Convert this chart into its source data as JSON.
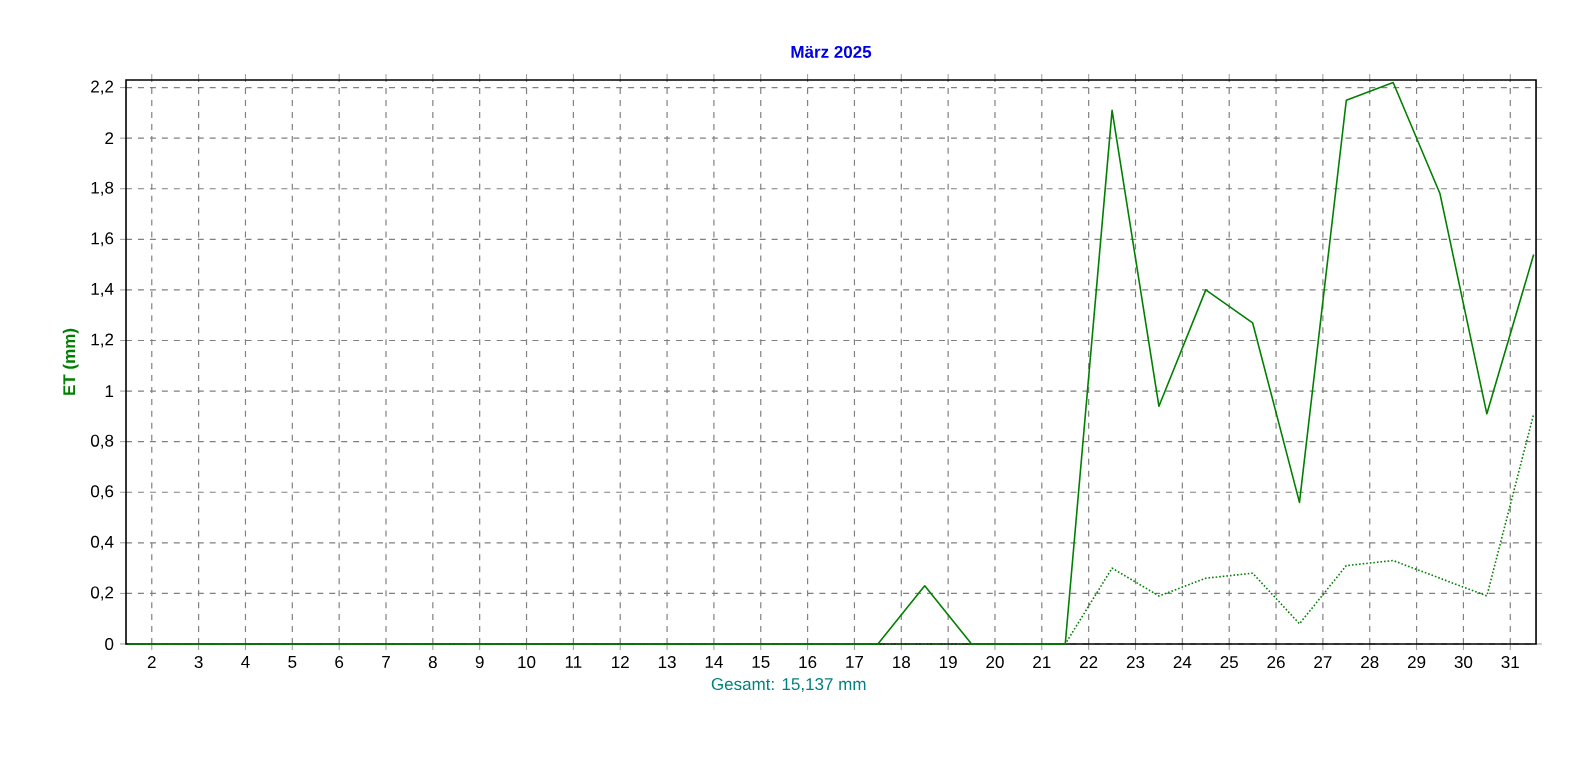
{
  "chart_data": {
    "type": "line",
    "title": "März 2025",
    "ylabel": "ET (mm)",
    "annotations": [
      "Gesamt: 15,137 mm"
    ],
    "x": [
      1.5,
      2.5,
      3.5,
      4.5,
      5.5,
      6.5,
      7.5,
      8.5,
      9.5,
      10.5,
      11.5,
      12.5,
      13.5,
      14.5,
      15.5,
      16.5,
      17.5,
      18.5,
      19.5,
      20.5,
      21.5,
      22.5,
      23.5,
      24.5,
      25.5,
      26.5,
      27.5,
      28.5,
      29.5,
      30.5,
      31.5
    ],
    "series": [
      {
        "color": "#008000",
        "line_style": "solid",
        "values": [
          0,
          0,
          0,
          0,
          0,
          0,
          0,
          0,
          0,
          0,
          0,
          0,
          0,
          0,
          0,
          0,
          0,
          0.23,
          0,
          0,
          0,
          2.11,
          0.94,
          1.4,
          1.27,
          0.56,
          2.15,
          2.22,
          1.78,
          0.91,
          1.54
        ]
      },
      {
        "color": "#008000",
        "line_style": "dotted",
        "values": [
          0,
          0,
          0,
          0,
          0,
          0,
          0,
          0,
          0,
          0,
          0,
          0,
          0,
          0,
          0,
          0,
          0,
          0,
          0,
          0,
          0,
          0.3,
          0.19,
          0.26,
          0.28,
          0.08,
          0.31,
          0.33,
          0.26,
          0.19,
          0.91
        ]
      }
    ],
    "xlim": [
      1.45,
      31.55
    ],
    "ylim": [
      0,
      2.23
    ],
    "xticks": [
      2,
      3,
      4,
      5,
      6,
      7,
      8,
      9,
      10,
      11,
      12,
      13,
      14,
      15,
      16,
      17,
      18,
      19,
      20,
      21,
      22,
      23,
      24,
      25,
      26,
      27,
      28,
      29,
      30,
      31
    ],
    "yticks": [
      0,
      {
        "value": 0.2,
        "label": "0,2"
      },
      {
        "value": 0.4,
        "label": "0,4"
      },
      {
        "value": 0.6,
        "label": "0,6"
      },
      {
        "value": 0.8,
        "label": "0,8"
      },
      1,
      {
        "value": 1.2,
        "label": "1,2"
      },
      {
        "value": 1.4,
        "label": "1,4"
      },
      {
        "value": 1.6,
        "label": "1,6"
      },
      {
        "value": 1.8,
        "label": "1,8"
      },
      2,
      {
        "value": 2.2,
        "label": "2,2"
      }
    ],
    "grid": true,
    "marker": "none"
  }
}
